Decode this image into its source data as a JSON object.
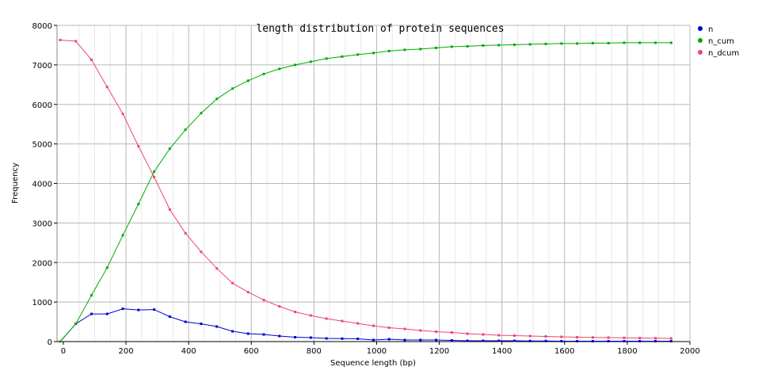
{
  "chart_data": {
    "type": "line",
    "title": "length distribution of protein sequences",
    "xlabel": "Sequence length (bp)",
    "ylabel": "Frequency",
    "xlim": [
      -20,
      2000
    ],
    "ylim": [
      0,
      8000
    ],
    "xticks": [
      0,
      200,
      400,
      600,
      800,
      1000,
      1200,
      1400,
      1600,
      1800,
      2000
    ],
    "yticks": [
      0,
      1000,
      2000,
      3000,
      4000,
      5000,
      6000,
      7000,
      8000
    ],
    "grid": true,
    "legend_position": "right",
    "series": [
      {
        "name": "n",
        "color": "#0000cc",
        "x": [
          -10,
          40,
          90,
          140,
          190,
          240,
          290,
          340,
          390,
          440,
          490,
          540,
          590,
          640,
          690,
          740,
          790,
          840,
          890,
          940,
          990,
          1040,
          1090,
          1140,
          1190,
          1240,
          1290,
          1340,
          1390,
          1440,
          1490,
          1540,
          1590,
          1640,
          1690,
          1740,
          1790,
          1840,
          1890,
          1940
        ],
        "y": [
          0,
          450,
          700,
          700,
          830,
          800,
          810,
          630,
          500,
          450,
          380,
          260,
          200,
          180,
          140,
          110,
          100,
          80,
          75,
          70,
          40,
          60,
          40,
          40,
          40,
          30,
          20,
          20,
          20,
          20,
          15,
          15,
          10,
          10,
          10,
          10,
          10,
          10,
          10,
          10
        ]
      },
      {
        "name": "n_cum",
        "color": "#00aa00",
        "x": [
          -10,
          40,
          90,
          140,
          190,
          240,
          290,
          340,
          390,
          440,
          490,
          540,
          590,
          640,
          690,
          740,
          790,
          840,
          890,
          940,
          990,
          1040,
          1090,
          1140,
          1190,
          1240,
          1290,
          1340,
          1390,
          1440,
          1490,
          1540,
          1590,
          1640,
          1690,
          1740,
          1790,
          1840,
          1890,
          1940
        ],
        "y": [
          0,
          450,
          1170,
          1870,
          2690,
          3480,
          4300,
          4880,
          5360,
          5780,
          6140,
          6400,
          6600,
          6770,
          6900,
          7000,
          7080,
          7160,
          7210,
          7260,
          7300,
          7350,
          7380,
          7400,
          7430,
          7460,
          7470,
          7490,
          7500,
          7510,
          7520,
          7530,
          7540,
          7540,
          7550,
          7550,
          7560,
          7560,
          7560,
          7560
        ]
      },
      {
        "name": "n_dcum",
        "color": "#ee4477",
        "x": [
          -10,
          40,
          90,
          140,
          190,
          240,
          290,
          340,
          390,
          440,
          490,
          540,
          590,
          640,
          690,
          740,
          790,
          840,
          890,
          940,
          990,
          1040,
          1090,
          1140,
          1190,
          1240,
          1290,
          1340,
          1390,
          1440,
          1490,
          1540,
          1590,
          1640,
          1690,
          1740,
          1790,
          1840,
          1890,
          1940
        ],
        "y": [
          7630,
          7600,
          7130,
          6440,
          5760,
          4940,
          4160,
          3340,
          2740,
          2270,
          1850,
          1480,
          1250,
          1050,
          890,
          750,
          660,
          580,
          520,
          460,
          400,
          350,
          320,
          280,
          250,
          230,
          200,
          180,
          160,
          150,
          140,
          130,
          120,
          110,
          105,
          100,
          95,
          90,
          85,
          80
        ]
      }
    ]
  }
}
